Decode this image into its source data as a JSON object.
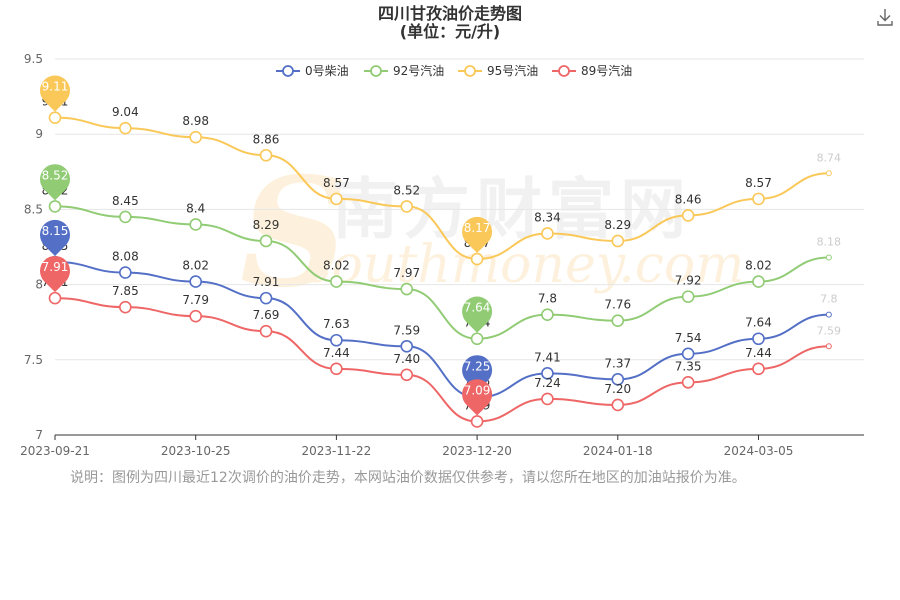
{
  "title": "四川甘孜油价走势图",
  "subtitle": "(单位：元/升)",
  "note": "说明：图例为四川最近12次调价的油价走势，本网站油价数据仅供参考，请以您所在地区的加油站报价为准。",
  "watermark": {
    "cn": "南方财富网",
    "en": "southmoney.com"
  },
  "chart_data": {
    "type": "line",
    "categories": [
      "2023-09-21",
      "",
      "2023-10-25",
      "",
      "2023-11-22",
      "",
      "2023-12-20",
      "",
      "2024-01-18",
      "",
      "2024-03-05",
      ""
    ],
    "x_tick_labels": [
      "2023-09-21",
      "2023-10-25",
      "2023-11-22",
      "2023-12-20",
      "2024-01-18",
      "2024-03-05"
    ],
    "y_ticks": [
      "7",
      "7.5",
      "8",
      "8.5",
      "9",
      "9.5"
    ],
    "ylim": [
      7,
      9.5
    ],
    "grid": true,
    "legend_position": "top-center",
    "series": [
      {
        "name": "0号柴油",
        "color": "#5470c6",
        "values": [
          8.15,
          8.08,
          8.02,
          7.91,
          7.63,
          7.59,
          7.25,
          7.41,
          7.37,
          7.54,
          7.64,
          7.8
        ],
        "max_marker": "8.15",
        "min_marker": "7.25",
        "min_marker_index": 6
      },
      {
        "name": "92号汽油",
        "color": "#91cc75",
        "values": [
          8.52,
          8.45,
          8.4,
          8.29,
          8.02,
          7.97,
          7.64,
          7.8,
          7.76,
          7.92,
          8.02,
          8.18
        ],
        "max_marker": "8.52",
        "min_marker": "7.64",
        "min_marker_index": 6
      },
      {
        "name": "95号汽油",
        "color": "#fac858",
        "values": [
          9.11,
          9.04,
          8.98,
          8.86,
          8.57,
          8.52,
          8.17,
          8.34,
          8.29,
          8.46,
          8.57,
          8.74
        ],
        "max_marker": "9.11",
        "min_marker": "8.17",
        "min_marker_index": 6
      },
      {
        "name": "89号汽油",
        "color": "#ee6666",
        "values": [
          7.91,
          7.85,
          7.79,
          7.69,
          7.44,
          7.4,
          7.09,
          7.24,
          7.2,
          7.35,
          7.44,
          7.59
        ],
        "max_marker": "7.91",
        "min_marker": "7.09",
        "min_marker_index": 6
      }
    ],
    "value_labels": [
      [
        "8.15",
        "8.08",
        "8.02",
        "7.91",
        "7.63",
        "7.59",
        "7.25",
        "7.41",
        "7.37",
        "7.54",
        "7.64",
        "7.8"
      ],
      [
        "8.52",
        "8.45",
        "8.4",
        "8.29",
        "8.02",
        "7.97",
        "7.64",
        "7.8",
        "7.76",
        "7.92",
        "8.02",
        "8.18"
      ],
      [
        "9.11",
        "9.04",
        "8.98",
        "8.86",
        "8.57",
        "8.52",
        "8.17",
        "8.34",
        "8.29",
        "8.46",
        "8.57",
        "8.74"
      ],
      [
        "7.91",
        "7.85",
        "7.79",
        "7.69",
        "7.44",
        "7.40",
        "7.09",
        "7.24",
        "7.20",
        "7.35",
        "7.44",
        "7.59"
      ]
    ]
  }
}
